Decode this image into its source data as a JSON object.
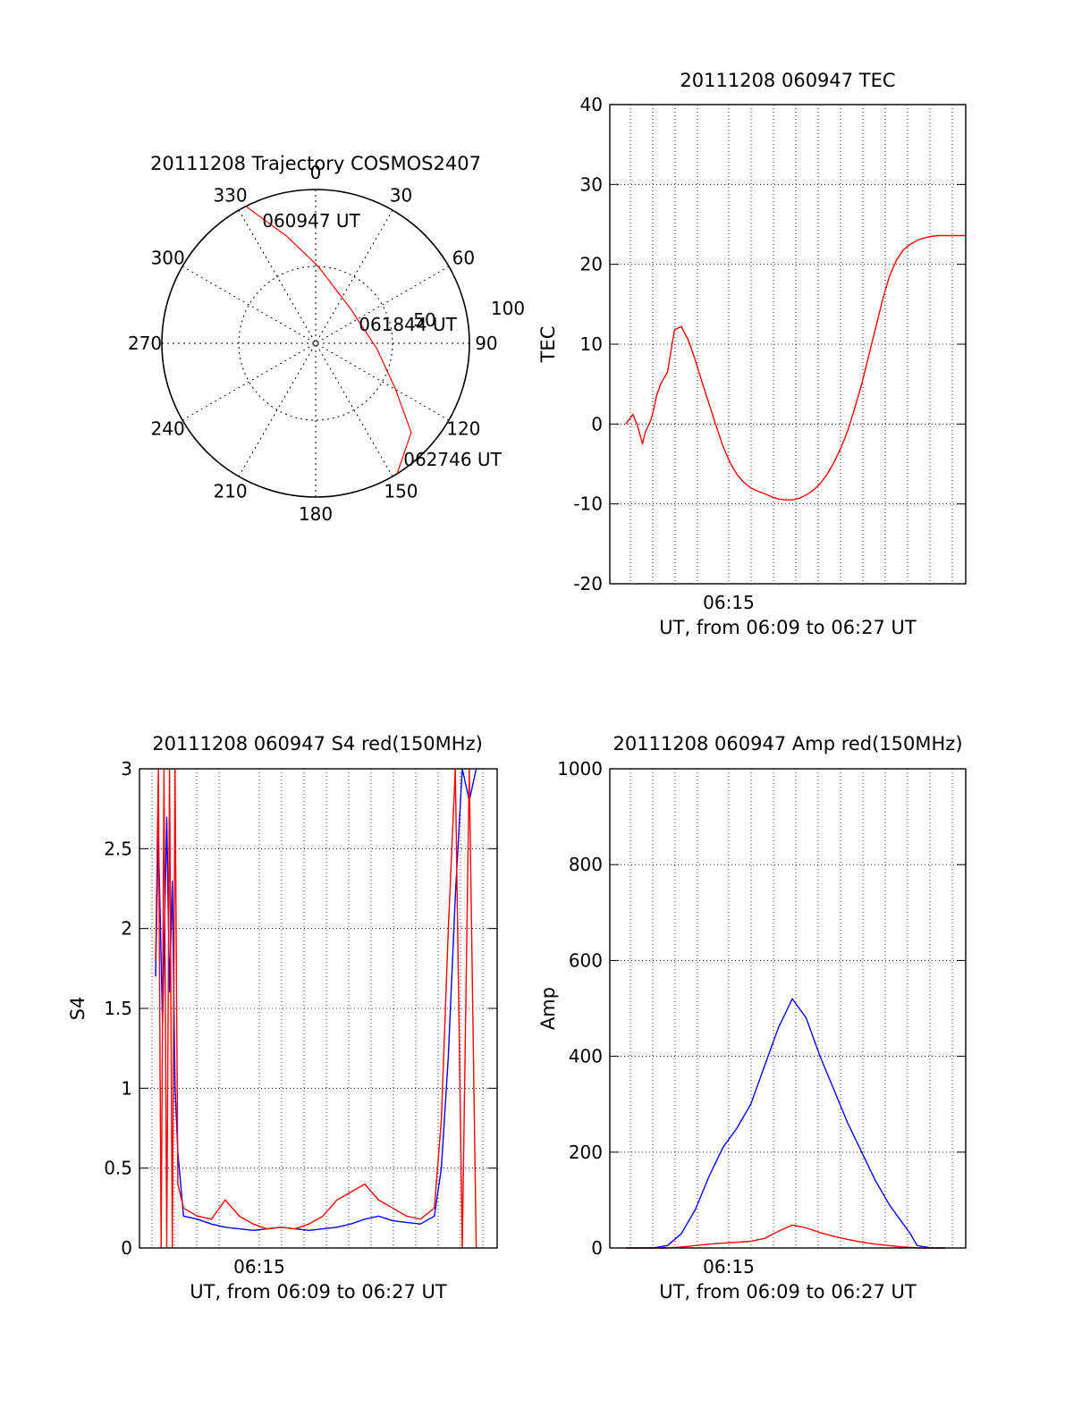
{
  "chart_data": [
    {
      "type": "polar",
      "title": "20111208 Trajectory COSMOS2407",
      "angle_labels": [
        "0",
        "30",
        "60",
        "90",
        "120",
        "150",
        "180",
        "210",
        "240",
        "270",
        "300",
        "330"
      ],
      "radial_labels": [
        "50",
        "100"
      ],
      "rmax": 100,
      "trajectory": [
        {
          "az": 333,
          "r": 100
        },
        {
          "az": 345,
          "r": 72
        },
        {
          "az": 2,
          "r": 50
        },
        {
          "az": 45,
          "r": 32
        },
        {
          "az": 95,
          "r": 40
        },
        {
          "az": 120,
          "r": 60
        },
        {
          "az": 133,
          "r": 85
        },
        {
          "az": 148,
          "r": 100
        }
      ],
      "annotations": [
        {
          "text": "060947 UT",
          "az": 353,
          "r": 88
        },
        {
          "text": "061844 UT",
          "az": 83,
          "r": 51
        },
        {
          "text": "062746 UT",
          "az": 138,
          "r": 114
        }
      ],
      "trajectory_color": "#ff0000"
    },
    {
      "type": "line",
      "title": "20111208 060947 TEC",
      "ylabel": "TEC",
      "xlabel": "UT, from 06:09 to 06:27 UT",
      "xtick_label": "06:15",
      "ylim": [
        -20,
        40
      ],
      "yticks": [
        -20,
        -10,
        0,
        10,
        20,
        30,
        40
      ],
      "grid": true,
      "series": [
        {
          "color": "#ff0000",
          "x": [
            0.0,
            0.05,
            0.08,
            0.12,
            0.14,
            0.18,
            0.2,
            0.22,
            0.25,
            0.3,
            0.35,
            0.4,
            0.45,
            0.5,
            0.55,
            0.6,
            0.65,
            0.7,
            0.75,
            0.8,
            0.85,
            0.9,
            0.95,
            1.0,
            1.05,
            1.1,
            1.15,
            1.2,
            1.25,
            1.3,
            1.35,
            1.4,
            1.45,
            1.5,
            1.55,
            1.6,
            1.65,
            1.7,
            1.75,
            1.8,
            1.85,
            1.9,
            1.95,
            2.0,
            2.05,
            2.1,
            2.15,
            2.2,
            2.25,
            2.3,
            2.35,
            2.4,
            2.45
          ],
          "y": [
            0.0,
            1.2,
            0.0,
            -2.5,
            -1.0,
            0.5,
            1.8,
            3.5,
            5.0,
            6.5,
            11.8,
            12.2,
            10.5,
            8.0,
            5.2,
            2.5,
            -0.2,
            -2.8,
            -4.8,
            -6.3,
            -7.3,
            -8.0,
            -8.4,
            -8.7,
            -9.1,
            -9.4,
            -9.5,
            -9.5,
            -9.3,
            -8.9,
            -8.3,
            -7.5,
            -6.3,
            -4.8,
            -3.0,
            -0.8,
            2.0,
            5.0,
            8.5,
            12.0,
            15.5,
            18.5,
            20.5,
            21.8,
            22.5,
            23.0,
            23.3,
            23.5,
            23.6,
            23.6,
            23.6,
            23.6,
            23.6
          ]
        }
      ]
    },
    {
      "type": "line",
      "title": "20111208 060947 S4 red(150MHz)",
      "ylabel": "S4",
      "xlabel": "UT, from 06:09 to 06:27 UT",
      "xtick_label": "06:15",
      "ylim": [
        0,
        3
      ],
      "yticks": [
        "0",
        "0.5",
        "1",
        "1.5",
        "2",
        "2.5",
        "3"
      ],
      "grid": true,
      "series": [
        {
          "color": "#0000ff",
          "x": [
            0.0,
            0.02,
            0.05,
            0.08,
            0.1,
            0.12,
            0.14,
            0.16,
            0.2,
            0.3,
            0.4,
            0.5,
            0.6,
            0.7,
            0.8,
            0.9,
            1.0,
            1.1,
            1.2,
            1.3,
            1.4,
            1.5,
            1.6,
            1.7,
            1.8,
            1.9,
            2.0,
            2.05,
            2.1,
            2.15,
            2.2,
            2.25,
            2.3
          ],
          "y": [
            1.7,
            2.6,
            1.4,
            2.7,
            1.6,
            2.3,
            1.0,
            0.6,
            0.2,
            0.18,
            0.15,
            0.13,
            0.12,
            0.11,
            0.12,
            0.13,
            0.12,
            0.11,
            0.12,
            0.13,
            0.15,
            0.18,
            0.2,
            0.17,
            0.16,
            0.15,
            0.2,
            0.5,
            1.2,
            2.2,
            3.0,
            2.8,
            3.0
          ]
        },
        {
          "color": "#ff0000",
          "x": [
            0.0,
            0.02,
            0.04,
            0.06,
            0.08,
            0.1,
            0.12,
            0.14,
            0.16,
            0.2,
            0.3,
            0.4,
            0.5,
            0.6,
            0.7,
            0.8,
            0.9,
            1.0,
            1.1,
            1.2,
            1.3,
            1.4,
            1.5,
            1.6,
            1.7,
            1.8,
            1.9,
            2.0,
            2.05,
            2.1,
            2.15,
            2.2,
            2.25,
            2.3
          ],
          "y": [
            1.8,
            3.0,
            0.0,
            3.0,
            0.0,
            3.0,
            0.0,
            3.0,
            0.4,
            0.25,
            0.2,
            0.18,
            0.3,
            0.2,
            0.15,
            0.12,
            0.13,
            0.12,
            0.15,
            0.2,
            0.3,
            0.35,
            0.4,
            0.3,
            0.25,
            0.2,
            0.18,
            0.25,
            0.8,
            2.0,
            3.0,
            0.0,
            3.0,
            0.0
          ]
        }
      ]
    },
    {
      "type": "line",
      "title": "20111208 060947 Amp red(150MHz)",
      "ylabel": "Amp",
      "xlabel": "UT, from 06:09 to 06:27 UT",
      "xtick_label": "06:15",
      "ylim": [
        0,
        1000
      ],
      "yticks": [
        0,
        200,
        400,
        600,
        800,
        1000
      ],
      "grid": true,
      "series": [
        {
          "color": "#0000ff",
          "x": [
            0.0,
            0.2,
            0.3,
            0.4,
            0.5,
            0.6,
            0.7,
            0.8,
            0.9,
            1.0,
            1.1,
            1.2,
            1.3,
            1.4,
            1.5,
            1.6,
            1.7,
            1.8,
            1.9,
            2.0,
            2.05,
            2.1,
            2.2,
            2.3
          ],
          "y": [
            0,
            0,
            5,
            30,
            80,
            150,
            210,
            250,
            300,
            380,
            460,
            520,
            480,
            400,
            330,
            260,
            200,
            140,
            90,
            50,
            30,
            5,
            0,
            0
          ]
        },
        {
          "color": "#ff0000",
          "x": [
            0.0,
            0.3,
            0.4,
            0.5,
            0.6,
            0.7,
            0.8,
            0.9,
            1.0,
            1.1,
            1.2,
            1.3,
            1.4,
            1.5,
            1.6,
            1.7,
            1.8,
            1.9,
            2.0,
            2.1,
            2.3
          ],
          "y": [
            0,
            0,
            2,
            5,
            8,
            10,
            12,
            14,
            20,
            35,
            48,
            42,
            32,
            24,
            18,
            12,
            8,
            5,
            2,
            0,
            0
          ]
        }
      ]
    }
  ]
}
